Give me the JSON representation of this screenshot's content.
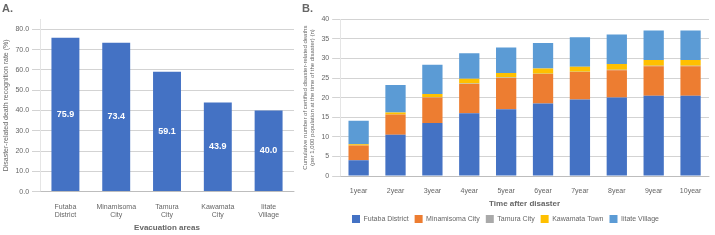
{
  "chart_data": [
    {
      "type": "bar",
      "title": "A.",
      "categories": [
        "Futaba District",
        "Minamisoma City",
        "Tamura City",
        "Kawamata City",
        "Iitate Village"
      ],
      "values": [
        75.9,
        73.4,
        59.1,
        43.9,
        40.0
      ],
      "value_labels": [
        "75.9",
        "73.4",
        "59.1",
        "43.9",
        "40.0"
      ],
      "data_labels": true,
      "color": "#4472C4",
      "xlabel": "Evacuation areas",
      "ylabel": "Disaster-related death recognition rate (%)",
      "ylim": [
        0,
        85
      ],
      "yticks": [
        {
          "value": 0,
          "label": "0.0"
        },
        {
          "value": 10,
          "label": "10.0"
        },
        {
          "value": 20,
          "label": "20.0"
        },
        {
          "value": 30,
          "label": "30.0"
        },
        {
          "value": 40,
          "label": "40.0"
        },
        {
          "value": 50,
          "label": "50.0"
        },
        {
          "value": 60,
          "label": "60.0"
        },
        {
          "value": 70,
          "label": "70.0"
        },
        {
          "value": 80,
          "label": "80.0"
        }
      ],
      "grid": true
    },
    {
      "type": "bar",
      "title": "B.",
      "categories": [
        "1year",
        "2year",
        "3year",
        "4year",
        "5year",
        "6year",
        "7year",
        "8year",
        "9year",
        "10year"
      ],
      "series": [
        {
          "name": "Futaba District",
          "color": "#4472C4",
          "values": [
            4.0,
            10.5,
            13.5,
            16.0,
            17.0,
            18.5,
            19.5,
            20.0,
            20.5,
            20.5
          ]
        },
        {
          "name": "Minamisoma City",
          "color": "#ED7D31",
          "values": [
            3.8,
            5.2,
            6.5,
            7.5,
            8.0,
            7.5,
            7.0,
            7.0,
            7.5,
            7.5
          ]
        },
        {
          "name": "Tamura City",
          "color": "#A9A9A9",
          "values": [
            0.0,
            0.0,
            0.1,
            0.1,
            0.1,
            0.1,
            0.1,
            0.1,
            0.1,
            0.1
          ]
        },
        {
          "name": "Kawamata Town",
          "color": "#FFC000",
          "values": [
            0.3,
            0.5,
            0.8,
            1.2,
            1.2,
            1.3,
            1.3,
            1.5,
            1.5,
            1.5
          ]
        },
        {
          "name": "Iitate Village",
          "color": "#5B9BD5",
          "values": [
            6.0,
            7.0,
            7.5,
            6.5,
            6.5,
            6.5,
            7.5,
            7.5,
            7.5,
            7.5
          ]
        }
      ],
      "stacked": true,
      "xlabel": "Time after disaster",
      "ylabel": "Cumulative number of certified disaster-related deaths\n(per 1,000 population at the time of the disaster) (n)",
      "ylim": [
        0,
        40
      ],
      "yticks": [
        0,
        5,
        10,
        15,
        20,
        25,
        30,
        35,
        40
      ],
      "grid": true,
      "legend": "bottom"
    }
  ]
}
